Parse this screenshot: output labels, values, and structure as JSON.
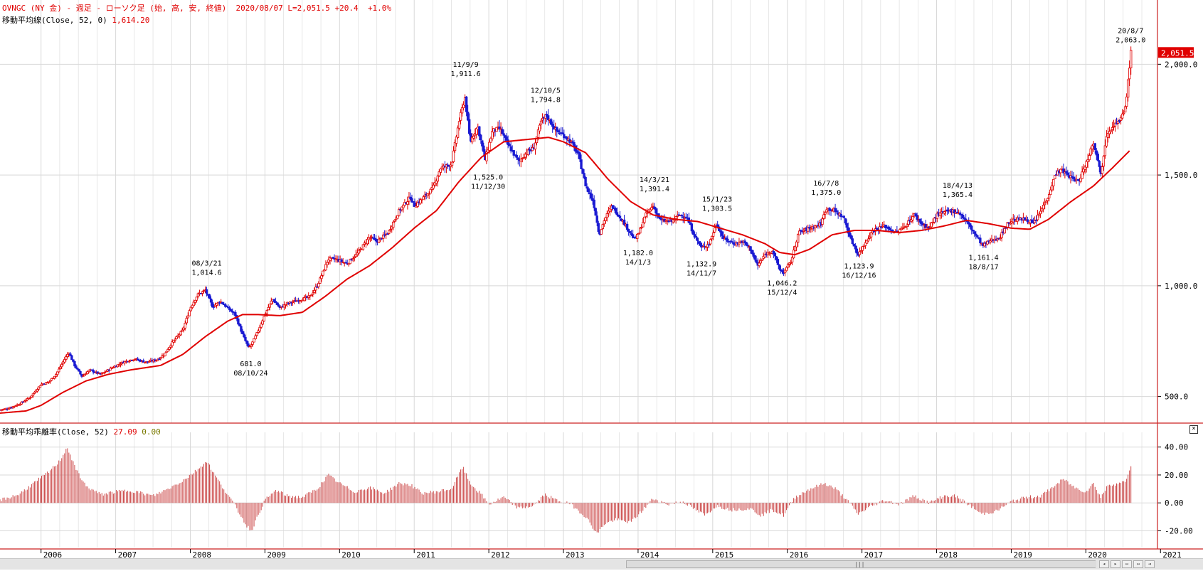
{
  "header": {
    "symbol": "OVNGC (NY 金)",
    "sep1": " - ",
    "period": "週足",
    "sep2": " - ",
    "chart_kind": "ローソク足",
    "fields": "(始, 高, 安, 終値)",
    "date": "2020/08/07",
    "last": "L=2,051.5",
    "change": "+20.4",
    "change_pct": "+1.0%"
  },
  "ma_legend": {
    "label": "移動平均線(Close, 52, 0)",
    "value": "1,614.20"
  },
  "sub_legend": {
    "label": "移動平均乖離率(Close, 52)",
    "value1": "27.09",
    "value2": "0.00"
  },
  "price_tag": "2,051.5",
  "colors": {
    "up": "#e00000",
    "down": "#1a1ad2",
    "ma": "#e00000",
    "dev": "#cc4a4a",
    "grid": "#d8d8d8",
    "frame": "#cc2222"
  },
  "icons": {
    "close": "close-icon",
    "scroll_left": "scroll-left-icon",
    "scroll_right": "scroll-right-icon"
  },
  "chart_data": [
    {
      "type": "candlestick",
      "title": "OVNGC (NY 金)",
      "ylim": [
        380,
        2290
      ],
      "yticks": [
        "500.0",
        "1,000.0",
        "1,500.0",
        "2,000.0"
      ],
      "ytick_values": [
        500,
        1000,
        1500,
        2000
      ],
      "x_range": [
        2005.45,
        2020.95
      ],
      "year_labels": [
        "2006",
        "2007",
        "2008",
        "2009",
        "2010",
        "2011",
        "2012",
        "2013",
        "2014",
        "2015",
        "2016",
        "2017",
        "2018",
        "2019",
        "2020",
        "2021"
      ],
      "grid": true,
      "close_path": [
        [
          2005.45,
          440
        ],
        [
          2005.55,
          445
        ],
        [
          2005.7,
          465
        ],
        [
          2005.85,
          495
        ],
        [
          2006.0,
          555
        ],
        [
          2006.1,
          565
        ],
        [
          2006.2,
          600
        ],
        [
          2006.37,
          700
        ],
        [
          2006.45,
          640
        ],
        [
          2006.55,
          590
        ],
        [
          2006.65,
          620
        ],
        [
          2006.8,
          600
        ],
        [
          2006.95,
          630
        ],
        [
          2007.1,
          655
        ],
        [
          2007.25,
          670
        ],
        [
          2007.4,
          655
        ],
        [
          2007.55,
          665
        ],
        [
          2007.65,
          690
        ],
        [
          2007.75,
          740
        ],
        [
          2007.9,
          800
        ],
        [
          2008.0,
          900
        ],
        [
          2008.1,
          960
        ],
        [
          2008.2,
          980
        ],
        [
          2008.3,
          905
        ],
        [
          2008.4,
          930
        ],
        [
          2008.5,
          900
        ],
        [
          2008.6,
          870
        ],
        [
          2008.7,
          780
        ],
        [
          2008.78,
          720
        ],
        [
          2008.82,
          735
        ],
        [
          2008.9,
          790
        ],
        [
          2009.0,
          870
        ],
        [
          2009.1,
          940
        ],
        [
          2009.2,
          900
        ],
        [
          2009.3,
          920
        ],
        [
          2009.45,
          935
        ],
        [
          2009.6,
          950
        ],
        [
          2009.7,
          1000
        ],
        [
          2009.85,
          1120
        ],
        [
          2009.95,
          1120
        ],
        [
          2010.1,
          1100
        ],
        [
          2010.25,
          1150
        ],
        [
          2010.4,
          1220
        ],
        [
          2010.5,
          1200
        ],
        [
          2010.65,
          1240
        ],
        [
          2010.8,
          1340
        ],
        [
          2010.95,
          1400
        ],
        [
          2011.0,
          1360
        ],
        [
          2011.1,
          1390
        ],
        [
          2011.25,
          1440
        ],
        [
          2011.35,
          1530
        ],
        [
          2011.5,
          1550
        ],
        [
          2011.6,
          1740
        ],
        [
          2011.68,
          1850
        ],
        [
          2011.75,
          1650
        ],
        [
          2011.85,
          1720
        ],
        [
          2011.95,
          1570
        ],
        [
          2012.05,
          1700
        ],
        [
          2012.15,
          1710
        ],
        [
          2012.25,
          1640
        ],
        [
          2012.4,
          1560
        ],
        [
          2012.5,
          1600
        ],
        [
          2012.6,
          1620
        ],
        [
          2012.7,
          1740
        ],
        [
          2012.77,
          1770
        ],
        [
          2012.9,
          1700
        ],
        [
          2013.0,
          1680
        ],
        [
          2013.1,
          1650
        ],
        [
          2013.2,
          1590
        ],
        [
          2013.3,
          1450
        ],
        [
          2013.4,
          1380
        ],
        [
          2013.48,
          1230
        ],
        [
          2013.55,
          1300
        ],
        [
          2013.65,
          1360
        ],
        [
          2013.8,
          1290
        ],
        [
          2013.95,
          1210
        ],
        [
          2014.0,
          1230
        ],
        [
          2014.1,
          1320
        ],
        [
          2014.2,
          1360
        ],
        [
          2014.3,
          1295
        ],
        [
          2014.45,
          1290
        ],
        [
          2014.55,
          1320
        ],
        [
          2014.65,
          1310
        ],
        [
          2014.75,
          1230
        ],
        [
          2014.85,
          1170
        ],
        [
          2014.95,
          1190
        ],
        [
          2015.05,
          1280
        ],
        [
          2015.15,
          1210
        ],
        [
          2015.3,
          1190
        ],
        [
          2015.4,
          1200
        ],
        [
          2015.5,
          1170
        ],
        [
          2015.6,
          1090
        ],
        [
          2015.7,
          1140
        ],
        [
          2015.8,
          1160
        ],
        [
          2015.9,
          1070
        ],
        [
          2015.95,
          1060
        ],
        [
          2016.05,
          1110
        ],
        [
          2016.15,
          1240
        ],
        [
          2016.3,
          1260
        ],
        [
          2016.45,
          1280
        ],
        [
          2016.52,
          1350
        ],
        [
          2016.62,
          1340
        ],
        [
          2016.75,
          1310
        ],
        [
          2016.85,
          1210
        ],
        [
          2016.95,
          1140
        ],
        [
          2017.05,
          1200
        ],
        [
          2017.15,
          1250
        ],
        [
          2017.3,
          1270
        ],
        [
          2017.45,
          1240
        ],
        [
          2017.55,
          1260
        ],
        [
          2017.7,
          1320
        ],
        [
          2017.8,
          1280
        ],
        [
          2017.9,
          1260
        ],
        [
          2018.0,
          1320
        ],
        [
          2018.1,
          1330
        ],
        [
          2018.2,
          1340
        ],
        [
          2018.3,
          1330
        ],
        [
          2018.4,
          1290
        ],
        [
          2018.5,
          1240
        ],
        [
          2018.62,
          1180
        ],
        [
          2018.7,
          1200
        ],
        [
          2018.85,
          1220
        ],
        [
          2018.95,
          1280
        ],
        [
          2019.05,
          1300
        ],
        [
          2019.2,
          1300
        ],
        [
          2019.3,
          1280
        ],
        [
          2019.4,
          1340
        ],
        [
          2019.5,
          1410
        ],
        [
          2019.6,
          1510
        ],
        [
          2019.68,
          1520
        ],
        [
          2019.8,
          1490
        ],
        [
          2019.9,
          1470
        ],
        [
          2020.0,
          1550
        ],
        [
          2020.1,
          1650
        ],
        [
          2020.15,
          1590
        ],
        [
          2020.2,
          1500
        ],
        [
          2020.28,
          1690
        ],
        [
          2020.38,
          1730
        ],
        [
          2020.45,
          1740
        ],
        [
          2020.52,
          1790
        ],
        [
          2020.56,
          1900
        ],
        [
          2020.6,
          2051.5
        ]
      ],
      "ma_line": [
        [
          2005.45,
          425
        ],
        [
          2005.8,
          435
        ],
        [
          2006.0,
          460
        ],
        [
          2006.3,
          520
        ],
        [
          2006.6,
          570
        ],
        [
          2006.9,
          600
        ],
        [
          2007.2,
          620
        ],
        [
          2007.6,
          640
        ],
        [
          2007.9,
          690
        ],
        [
          2008.2,
          770
        ],
        [
          2008.5,
          840
        ],
        [
          2008.7,
          870
        ],
        [
          2008.9,
          870
        ],
        [
          2009.2,
          865
        ],
        [
          2009.5,
          880
        ],
        [
          2009.8,
          950
        ],
        [
          2010.1,
          1030
        ],
        [
          2010.4,
          1090
        ],
        [
          2010.7,
          1170
        ],
        [
          2011.0,
          1260
        ],
        [
          2011.3,
          1340
        ],
        [
          2011.6,
          1470
        ],
        [
          2011.9,
          1580
        ],
        [
          2012.2,
          1650
        ],
        [
          2012.5,
          1660
        ],
        [
          2012.8,
          1670
        ],
        [
          2013.0,
          1650
        ],
        [
          2013.3,
          1600
        ],
        [
          2013.6,
          1480
        ],
        [
          2013.9,
          1380
        ],
        [
          2014.2,
          1320
        ],
        [
          2014.5,
          1300
        ],
        [
          2014.8,
          1290
        ],
        [
          2015.1,
          1260
        ],
        [
          2015.4,
          1230
        ],
        [
          2015.7,
          1190
        ],
        [
          2015.9,
          1150
        ],
        [
          2016.1,
          1140
        ],
        [
          2016.3,
          1165
        ],
        [
          2016.6,
          1230
        ],
        [
          2016.9,
          1250
        ],
        [
          2017.2,
          1250
        ],
        [
          2017.5,
          1240
        ],
        [
          2017.8,
          1250
        ],
        [
          2018.1,
          1270
        ],
        [
          2018.4,
          1295
        ],
        [
          2018.7,
          1280
        ],
        [
          2019.0,
          1260
        ],
        [
          2019.25,
          1255
        ],
        [
          2019.5,
          1300
        ],
        [
          2019.8,
          1380
        ],
        [
          2020.1,
          1450
        ],
        [
          2020.35,
          1530
        ],
        [
          2020.6,
          1614.2
        ]
      ],
      "annotations": [
        {
          "date": "08/3/21",
          "value": "1,014.6",
          "x": 2008.22,
          "y": 1014.6,
          "pos": "above"
        },
        {
          "date": "08/10/24",
          "value": "681.0",
          "x": 2008.81,
          "y": 681.0,
          "pos": "below"
        },
        {
          "date": "11/9/9",
          "value": "1,911.6",
          "x": 2011.69,
          "y": 1911.6,
          "pos": "above"
        },
        {
          "date": "11/12/30",
          "value": "1,525.0",
          "x": 2011.99,
          "y": 1525.0,
          "pos": "below"
        },
        {
          "date": "12/10/5",
          "value": "1,794.8",
          "x": 2012.76,
          "y": 1794.8,
          "pos": "above"
        },
        {
          "date": "14/1/3",
          "value": "1,182.0",
          "x": 2014.0,
          "y": 1182.0,
          "pos": "below"
        },
        {
          "date": "14/3/21",
          "value": "1,391.4",
          "x": 2014.22,
          "y": 1391.4,
          "pos": "above"
        },
        {
          "date": "14/11/7",
          "value": "1,132.9",
          "x": 2014.85,
          "y": 1132.9,
          "pos": "below"
        },
        {
          "date": "15/1/23",
          "value": "1,303.5",
          "x": 2015.06,
          "y": 1303.5,
          "pos": "above"
        },
        {
          "date": "15/12/4",
          "value": "1,046.2",
          "x": 2015.93,
          "y": 1046.2,
          "pos": "below"
        },
        {
          "date": "16/7/8",
          "value": "1,375.0",
          "x": 2016.52,
          "y": 1375.0,
          "pos": "above"
        },
        {
          "date": "16/12/16",
          "value": "1,123.9",
          "x": 2016.96,
          "y": 1123.9,
          "pos": "below"
        },
        {
          "date": "18/4/13",
          "value": "1,365.4",
          "x": 2018.28,
          "y": 1365.4,
          "pos": "above"
        },
        {
          "date": "18/8/17",
          "value": "1,161.4",
          "x": 2018.63,
          "y": 1161.4,
          "pos": "below"
        },
        {
          "date": "20/8/7",
          "value": "2,063.0",
          "x": 2020.6,
          "y": 2063.0,
          "pos": "above"
        }
      ]
    },
    {
      "type": "bar",
      "title": "移動平均乖離率(Close, 52)",
      "ylim": [
        -32,
        48
      ],
      "yticks": [
        "40.00",
        "20.00",
        "0.00",
        "-20.00"
      ],
      "ytick_values": [
        40,
        20,
        0,
        -20
      ],
      "deviation_path": [
        [
          2005.45,
          2
        ],
        [
          2005.7,
          6
        ],
        [
          2005.9,
          14
        ],
        [
          2006.1,
          22
        ],
        [
          2006.25,
          30
        ],
        [
          2006.35,
          40
        ],
        [
          2006.45,
          26
        ],
        [
          2006.6,
          12
        ],
        [
          2006.8,
          6
        ],
        [
          2007.0,
          8
        ],
        [
          2007.2,
          9
        ],
        [
          2007.5,
          5
        ],
        [
          2007.7,
          10
        ],
        [
          2007.9,
          16
        ],
        [
          2008.1,
          24
        ],
        [
          2008.22,
          30
        ],
        [
          2008.35,
          18
        ],
        [
          2008.5,
          6
        ],
        [
          2008.6,
          -2
        ],
        [
          2008.75,
          -16
        ],
        [
          2008.82,
          -20
        ],
        [
          2008.9,
          -10
        ],
        [
          2009.0,
          2
        ],
        [
          2009.15,
          9
        ],
        [
          2009.3,
          5
        ],
        [
          2009.5,
          4
        ],
        [
          2009.7,
          10
        ],
        [
          2009.85,
          20
        ],
        [
          2010.0,
          14
        ],
        [
          2010.2,
          8
        ],
        [
          2010.4,
          11
        ],
        [
          2010.6,
          7
        ],
        [
          2010.8,
          14
        ],
        [
          2010.95,
          13
        ],
        [
          2011.1,
          7
        ],
        [
          2011.3,
          8
        ],
        [
          2011.5,
          10
        ],
        [
          2011.65,
          26
        ],
        [
          2011.75,
          14
        ],
        [
          2011.9,
          6
        ],
        [
          2012.0,
          -1
        ],
        [
          2012.2,
          4
        ],
        [
          2012.4,
          -4
        ],
        [
          2012.6,
          -2
        ],
        [
          2012.75,
          6
        ],
        [
          2012.9,
          2
        ],
        [
          2013.1,
          -1
        ],
        [
          2013.3,
          -10
        ],
        [
          2013.45,
          -22
        ],
        [
          2013.55,
          -15
        ],
        [
          2013.7,
          -12
        ],
        [
          2013.9,
          -14
        ],
        [
          2014.05,
          -6
        ],
        [
          2014.2,
          3
        ],
        [
          2014.4,
          -1
        ],
        [
          2014.6,
          1
        ],
        [
          2014.8,
          -6
        ],
        [
          2014.9,
          -9
        ],
        [
          2015.05,
          -2
        ],
        [
          2015.25,
          -5
        ],
        [
          2015.5,
          -4
        ],
        [
          2015.65,
          -9
        ],
        [
          2015.8,
          -5
        ],
        [
          2015.95,
          -9
        ],
        [
          2016.1,
          4
        ],
        [
          2016.3,
          10
        ],
        [
          2016.5,
          14
        ],
        [
          2016.65,
          10
        ],
        [
          2016.8,
          2
        ],
        [
          2016.95,
          -8
        ],
        [
          2017.1,
          -3
        ],
        [
          2017.3,
          2
        ],
        [
          2017.5,
          -1
        ],
        [
          2017.7,
          5
        ],
        [
          2017.9,
          0
        ],
        [
          2018.1,
          5
        ],
        [
          2018.25,
          5
        ],
        [
          2018.45,
          -2
        ],
        [
          2018.6,
          -8
        ],
        [
          2018.8,
          -6
        ],
        [
          2019.0,
          1
        ],
        [
          2019.2,
          4
        ],
        [
          2019.4,
          5
        ],
        [
          2019.55,
          11
        ],
        [
          2019.7,
          17
        ],
        [
          2019.85,
          11
        ],
        [
          2020.0,
          8
        ],
        [
          2020.1,
          14
        ],
        [
          2020.2,
          4
        ],
        [
          2020.3,
          13
        ],
        [
          2020.45,
          14
        ],
        [
          2020.52,
          15
        ],
        [
          2020.56,
          19
        ],
        [
          2020.6,
          27.09
        ]
      ]
    }
  ]
}
